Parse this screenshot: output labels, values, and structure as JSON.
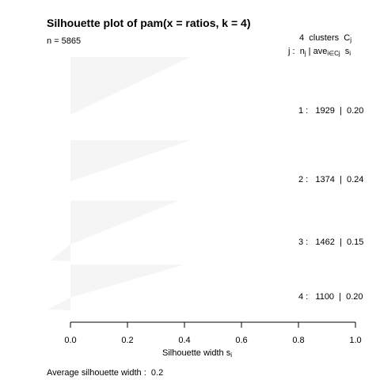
{
  "title": "Silhouette plot of pam(x = ratios, k = 4)",
  "n_label": "n = 5865",
  "header": {
    "clusters_count": "4",
    "clusters_word": "clusters",
    "c_symbol": "C",
    "c_sub": "j",
    "j_label": "j :",
    "n_symbol": "n",
    "n_sub": "j",
    "sep": "|",
    "ave_symbol": "ave",
    "ave_sub": "i∈Cj",
    "s_symbol": "s",
    "s_sub": "i"
  },
  "xlabel": {
    "main": "Silhouette width s",
    "sub": "i"
  },
  "average": {
    "label": "Average silhouette width :",
    "value": "0.2"
  },
  "chart_data": {
    "type": "bar",
    "orientation": "horizontal",
    "xlim": [
      0,
      1
    ],
    "xticks": [
      "0.0",
      "0.2",
      "0.4",
      "0.6",
      "0.8",
      "1.0"
    ],
    "bar_color": "#f5f5f5",
    "clusters": [
      {
        "j": "1",
        "n": "1929",
        "ave": "0.20",
        "max_width": 0.42,
        "min_width": 0.0
      },
      {
        "j": "2",
        "n": "1374",
        "ave": "0.24",
        "max_width": 0.42,
        "min_width": 0.0
      },
      {
        "j": "3",
        "n": "1462",
        "ave": "0.15",
        "max_width": 0.38,
        "min_width": -0.07
      },
      {
        "j": "4",
        "n": "1100",
        "ave": "0.20",
        "max_width": 0.4,
        "min_width": -0.08
      }
    ]
  }
}
